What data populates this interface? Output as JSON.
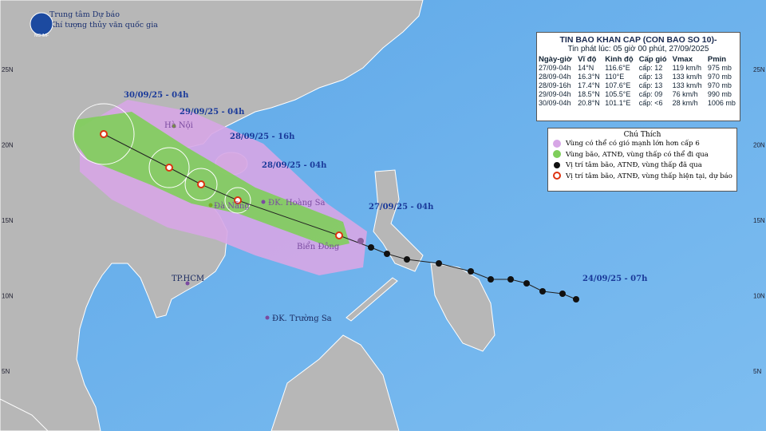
{
  "header": {
    "logo": "NCHMF",
    "line1": "Trung tâm Dự báo",
    "line2": "Khí tượng thủy văn quốc gia"
  },
  "info_box": {
    "title": "TIN BAO KHAN CAP (CON BAO SO 10)-",
    "issued": "Tin phát lúc: 05 giờ 00 phút, 27/09/2025",
    "columns": [
      "Ngày-giờ",
      "Vĩ độ",
      "Kinh độ",
      "Cấp gió",
      "Vmax",
      "Pmin"
    ],
    "rows": [
      [
        "27/09-04h",
        "14°N",
        "116.6°E",
        "cấp: 12",
        "119 km/h",
        "975 mb"
      ],
      [
        "28/09-04h",
        "16.3°N",
        "110°E",
        "cấp: 13",
        "133 km/h",
        "970 mb"
      ],
      [
        "28/09-16h",
        "17.4°N",
        "107.6°E",
        "cấp: 13",
        "133 km/h",
        "970 mb"
      ],
      [
        "29/09-04h",
        "18.5°N",
        "105.5°E",
        "cấp: 09",
        "76 km/h",
        "990 mb"
      ],
      [
        "30/09-04h",
        "20.8°N",
        "101.1°E",
        "cấp: <6",
        "28 km/h",
        "1006 mb"
      ]
    ]
  },
  "legend": {
    "title": "Chú Thích",
    "items": [
      "Vùng có thể có gió mạnh lớn hơn cấp 6",
      "Vùng bão, ATNĐ, vùng thấp có thể đi qua",
      "Vị trí tâm bão, ATNĐ, vùng thấp đã qua",
      "Vị trí tâm bão, ATNĐ, vùng thấp hiện tại, dự báo"
    ]
  },
  "map_labels": {
    "times": [
      "30/09/25 - 04h",
      "29/09/25 - 04h",
      "28/09/25 - 16h",
      "28/09/25 - 04h",
      "27/09/25 - 04h",
      "24/09/25 - 07h"
    ],
    "places": [
      "Hà Nội",
      "Đà Nẵng",
      "ĐK. Hoàng Sa",
      "Biển Đông",
      "TP.HCM",
      "ĐK. Trường Sa"
    ]
  },
  "lat_labels": [
    "25N",
    "20N",
    "15N",
    "10N",
    "5N"
  ]
}
